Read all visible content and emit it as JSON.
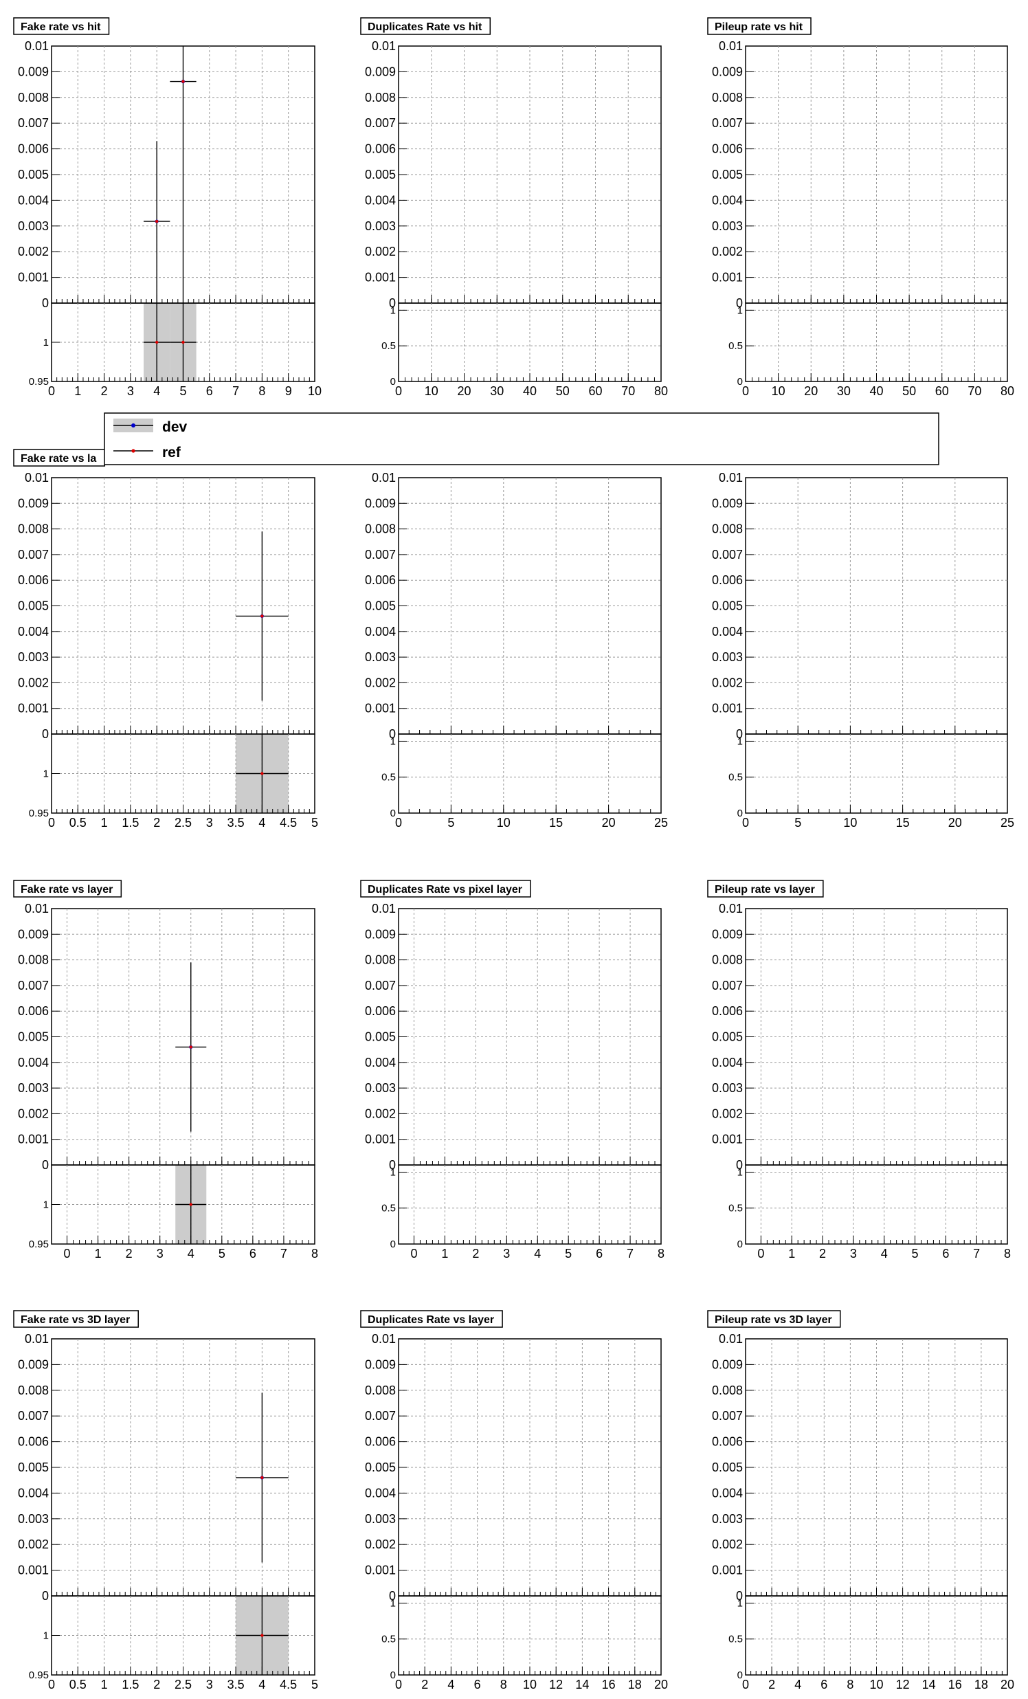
{
  "chart_data": [
    {
      "type": "scatter",
      "title": "Fake rate vs hit",
      "xlim": [
        0,
        10
      ],
      "ylim": [
        0,
        0.01
      ],
      "xticks": [
        "0",
        "1",
        "2",
        "3",
        "4",
        "5",
        "6",
        "7",
        "8",
        "9",
        "10"
      ],
      "yticks": [
        "0.001",
        "0.002",
        "0.003",
        "0.004",
        "0.005",
        "0.006",
        "0.007",
        "0.008",
        "0.009",
        "0.01"
      ],
      "ratio_ylim": [
        0.95,
        1.05
      ],
      "ratio_yticks": [
        "0.95",
        "1"
      ],
      "grid": true,
      "points": [
        {
          "x": 4,
          "y": 0.00318,
          "xerr": 0.5,
          "ylow": 0,
          "yhigh": 0.0063
        },
        {
          "x": 5,
          "y": 0.00862,
          "xerr": 0.5,
          "ylow": 0,
          "yhigh": 0.01
        }
      ],
      "ratio_points": [
        {
          "x": 4,
          "y": 1,
          "xerr": 0.5
        },
        {
          "x": 5,
          "y": 1,
          "xerr": 0.5
        }
      ]
    },
    {
      "type": "scatter",
      "title": "Duplicates Rate vs hit",
      "xlim": [
        0,
        80
      ],
      "ylim": [
        0,
        0.01
      ],
      "xticks": [
        "0",
        "10",
        "20",
        "30",
        "40",
        "50",
        "60",
        "70",
        "80"
      ],
      "yticks": [
        "0.001",
        "0.002",
        "0.003",
        "0.004",
        "0.005",
        "0.006",
        "0.007",
        "0.008",
        "0.009",
        "0.01"
      ],
      "ratio_ylim": [
        0,
        1.1
      ],
      "ratio_yticks": [
        "0",
        "0.5",
        "1"
      ],
      "grid": true,
      "points": [],
      "ratio_points": []
    },
    {
      "type": "scatter",
      "title": "Pileup rate vs hit",
      "xlim": [
        0,
        80
      ],
      "ylim": [
        0,
        0.01
      ],
      "xticks": [
        "0",
        "10",
        "20",
        "30",
        "40",
        "50",
        "60",
        "70",
        "80"
      ],
      "yticks": [
        "0.001",
        "0.002",
        "0.003",
        "0.004",
        "0.005",
        "0.006",
        "0.007",
        "0.008",
        "0.009",
        "0.01"
      ],
      "ratio_ylim": [
        0,
        1.1
      ],
      "ratio_yticks": [
        "0",
        "0.5",
        "1"
      ],
      "grid": true,
      "points": [],
      "ratio_points": []
    },
    {
      "type": "scatter",
      "title": "Fake rate vs la",
      "xlim": [
        0,
        5
      ],
      "ylim": [
        0,
        0.01
      ],
      "xticks": [
        "0",
        "0.5",
        "1",
        "1.5",
        "2",
        "2.5",
        "3",
        "3.5",
        "4",
        "4.5",
        "5"
      ],
      "yticks": [
        "0.001",
        "0.002",
        "0.003",
        "0.004",
        "0.005",
        "0.006",
        "0.007",
        "0.008",
        "0.009",
        "0.01"
      ],
      "ratio_ylim": [
        0.95,
        1.05
      ],
      "ratio_yticks": [
        "0.95",
        "1"
      ],
      "grid": true,
      "points": [
        {
          "x": 4,
          "y": 0.0046,
          "xerr": 0.5,
          "ylow": 0.0013,
          "yhigh": 0.0079
        }
      ],
      "ratio_points": [
        {
          "x": 4,
          "y": 1,
          "xerr": 0.5
        }
      ]
    },
    {
      "type": "scatter",
      "title": "",
      "xlim": [
        0,
        25
      ],
      "ylim": [
        0,
        0.01
      ],
      "xticks": [
        "0",
        "5",
        "10",
        "15",
        "20",
        "25"
      ],
      "yticks": [
        "0.001",
        "0.002",
        "0.003",
        "0.004",
        "0.005",
        "0.006",
        "0.007",
        "0.008",
        "0.009",
        "0.01"
      ],
      "ratio_ylim": [
        0,
        1.1
      ],
      "ratio_yticks": [
        "0",
        "0.5",
        "1"
      ],
      "grid": true,
      "points": [],
      "ratio_points": []
    },
    {
      "type": "scatter",
      "title": "",
      "xlim": [
        0,
        25
      ],
      "ylim": [
        0,
        0.01
      ],
      "xticks": [
        "0",
        "5",
        "10",
        "15",
        "20",
        "25"
      ],
      "yticks": [
        "0.001",
        "0.002",
        "0.003",
        "0.004",
        "0.005",
        "0.006",
        "0.007",
        "0.008",
        "0.009",
        "0.01"
      ],
      "ratio_ylim": [
        0,
        1.1
      ],
      "ratio_yticks": [
        "0",
        "0.5",
        "1"
      ],
      "grid": true,
      "points": [],
      "ratio_points": []
    },
    {
      "type": "scatter",
      "title": "Fake rate vs layer",
      "xlim": [
        -0.5,
        8
      ],
      "ylim": [
        0,
        0.01
      ],
      "xticks": [
        "0",
        "1",
        "2",
        "3",
        "4",
        "5",
        "6",
        "7",
        "8"
      ],
      "yticks": [
        "0.001",
        "0.002",
        "0.003",
        "0.004",
        "0.005",
        "0.006",
        "0.007",
        "0.008",
        "0.009",
        "0.01"
      ],
      "ratio_ylim": [
        0.95,
        1.05
      ],
      "ratio_yticks": [
        "0.95",
        "1"
      ],
      "grid": true,
      "points": [
        {
          "x": 4,
          "y": 0.0046,
          "xerr": 0.5,
          "ylow": 0.0013,
          "yhigh": 0.0079
        }
      ],
      "ratio_points": [
        {
          "x": 4,
          "y": 1,
          "xerr": 0.5
        }
      ]
    },
    {
      "type": "scatter",
      "title": "Duplicates Rate vs pixel layer",
      "xlim": [
        -0.5,
        8
      ],
      "ylim": [
        0,
        0.01
      ],
      "xticks": [
        "0",
        "1",
        "2",
        "3",
        "4",
        "5",
        "6",
        "7",
        "8"
      ],
      "yticks": [
        "0.001",
        "0.002",
        "0.003",
        "0.004",
        "0.005",
        "0.006",
        "0.007",
        "0.008",
        "0.009",
        "0.01"
      ],
      "ratio_ylim": [
        0,
        1.1
      ],
      "ratio_yticks": [
        "0",
        "0.5",
        "1"
      ],
      "grid": true,
      "points": [],
      "ratio_points": []
    },
    {
      "type": "scatter",
      "title": "Pileup rate vs layer",
      "xlim": [
        -0.5,
        8
      ],
      "ylim": [
        0,
        0.01
      ],
      "xticks": [
        "0",
        "1",
        "2",
        "3",
        "4",
        "5",
        "6",
        "7",
        "8"
      ],
      "yticks": [
        "0.001",
        "0.002",
        "0.003",
        "0.004",
        "0.005",
        "0.006",
        "0.007",
        "0.008",
        "0.009",
        "0.01"
      ],
      "ratio_ylim": [
        0,
        1.1
      ],
      "ratio_yticks": [
        "0",
        "0.5",
        "1"
      ],
      "grid": true,
      "points": [],
      "ratio_points": []
    },
    {
      "type": "scatter",
      "title": "Fake rate vs 3D layer",
      "xlim": [
        0,
        5
      ],
      "ylim": [
        0,
        0.01
      ],
      "xticks": [
        "0",
        "0.5",
        "1",
        "1.5",
        "2",
        "2.5",
        "3",
        "3.5",
        "4",
        "4.5",
        "5"
      ],
      "yticks": [
        "0.001",
        "0.002",
        "0.003",
        "0.004",
        "0.005",
        "0.006",
        "0.007",
        "0.008",
        "0.009",
        "0.01"
      ],
      "ratio_ylim": [
        0.95,
        1.05
      ],
      "ratio_yticks": [
        "0.95",
        "1"
      ],
      "grid": true,
      "points": [
        {
          "x": 4,
          "y": 0.0046,
          "xerr": 0.5,
          "ylow": 0.0013,
          "yhigh": 0.0079
        }
      ],
      "ratio_points": [
        {
          "x": 4,
          "y": 1,
          "xerr": 0.5
        }
      ]
    },
    {
      "type": "scatter",
      "title": "Duplicates Rate vs layer",
      "xlim": [
        0,
        20
      ],
      "ylim": [
        0,
        0.01
      ],
      "xticks": [
        "0",
        "2",
        "4",
        "6",
        "8",
        "10",
        "12",
        "14",
        "16",
        "18",
        "20"
      ],
      "yticks": [
        "0.001",
        "0.002",
        "0.003",
        "0.004",
        "0.005",
        "0.006",
        "0.007",
        "0.008",
        "0.009",
        "0.01"
      ],
      "ratio_ylim": [
        0,
        1.1
      ],
      "ratio_yticks": [
        "0",
        "0.5",
        "1"
      ],
      "grid": true,
      "points": [],
      "ratio_points": []
    },
    {
      "type": "scatter",
      "title": "Pileup rate vs 3D layer",
      "xlim": [
        0,
        20
      ],
      "ylim": [
        0,
        0.01
      ],
      "xticks": [
        "0",
        "2",
        "4",
        "6",
        "8",
        "10",
        "12",
        "14",
        "16",
        "18",
        "20"
      ],
      "yticks": [
        "0.001",
        "0.002",
        "0.003",
        "0.004",
        "0.005",
        "0.006",
        "0.007",
        "0.008",
        "0.009",
        "0.01"
      ],
      "ratio_ylim": [
        0,
        1.1
      ],
      "ratio_yticks": [
        "0",
        "0.5",
        "1"
      ],
      "grid": true,
      "points": [],
      "ratio_points": []
    }
  ],
  "legend": {
    "entries": [
      {
        "label": "dev",
        "color": "#0000cc"
      },
      {
        "label": "ref",
        "color": "#dd0000"
      }
    ]
  },
  "colors": {
    "dev": "#0000cc",
    "ref": "#dd0000",
    "band": "#cccccc",
    "grid": "#999999"
  }
}
